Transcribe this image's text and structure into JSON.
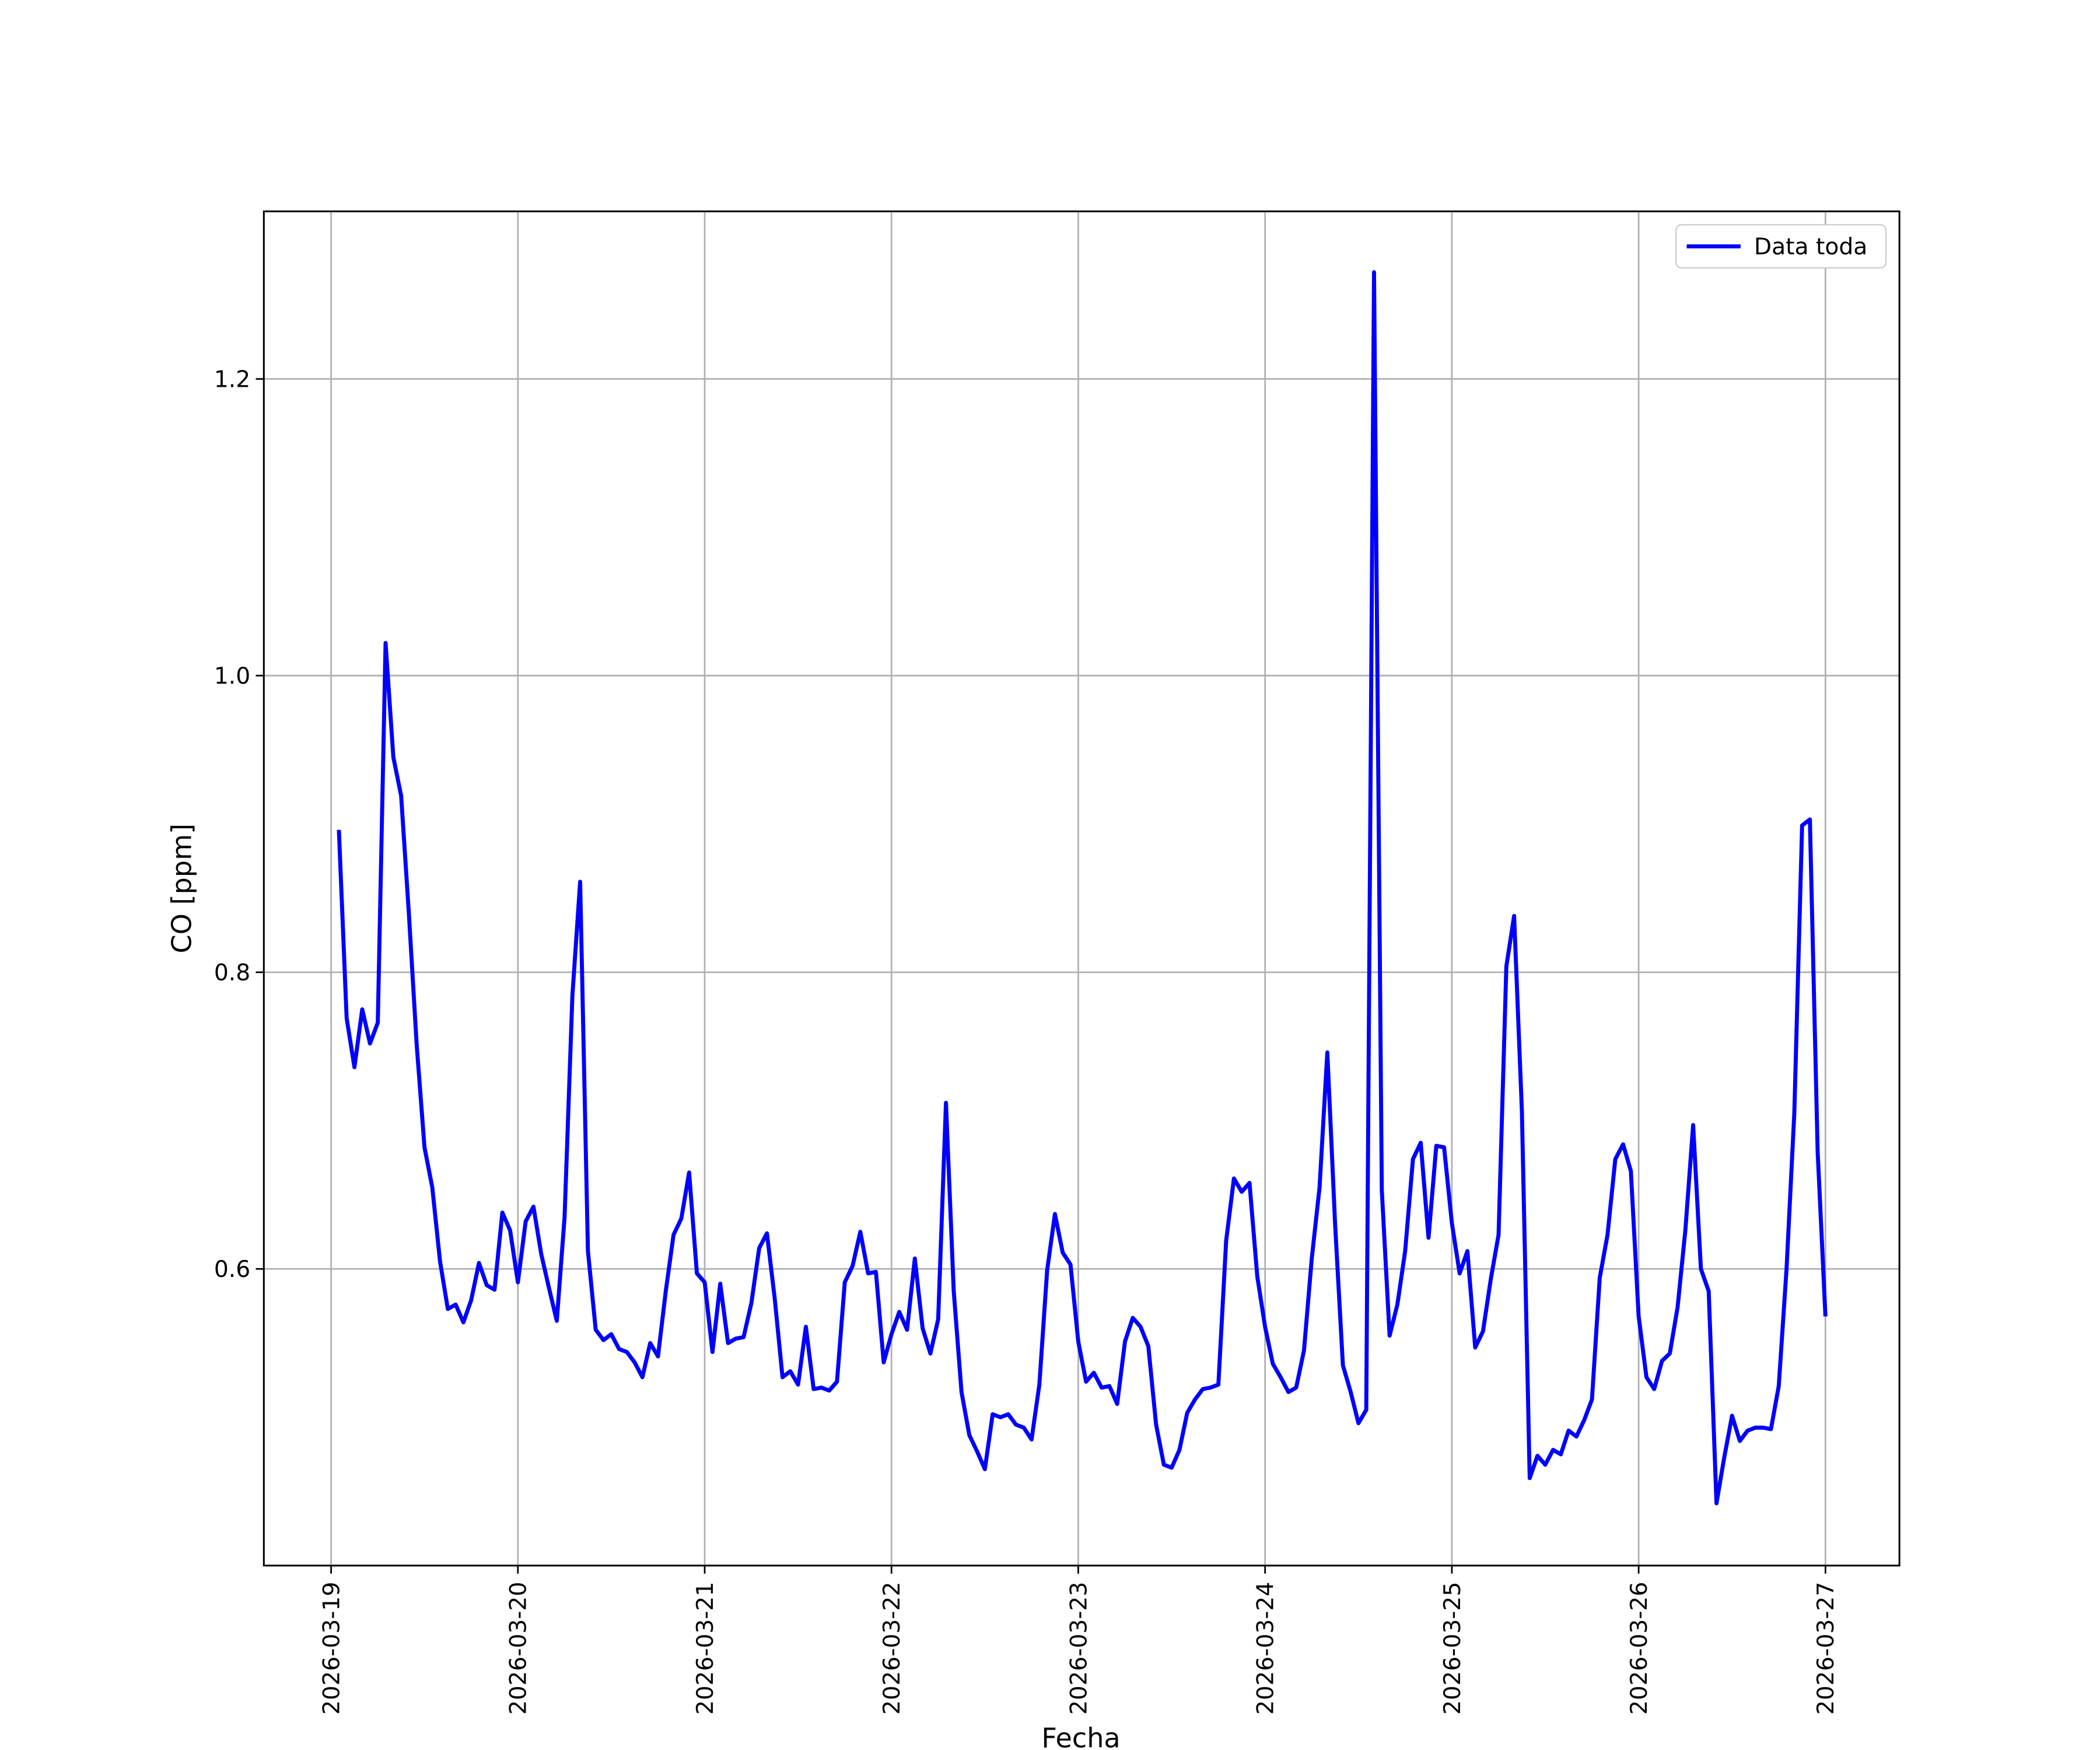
{
  "chart_data": {
    "type": "line",
    "xlabel": "Fecha",
    "ylabel": "CO [ppm]",
    "xlim": [
      -0.36,
      8.396
    ],
    "ylim": [
      0.4,
      1.313
    ],
    "xticks": [
      {
        "value": 0,
        "label": "2026-03-19"
      },
      {
        "value": 1,
        "label": "2026-03-20"
      },
      {
        "value": 2,
        "label": "2026-03-21"
      },
      {
        "value": 3,
        "label": "2026-03-22"
      },
      {
        "value": 4,
        "label": "2026-03-23"
      },
      {
        "value": 5,
        "label": "2026-03-24"
      },
      {
        "value": 6,
        "label": "2026-03-25"
      },
      {
        "value": 7,
        "label": "2026-03-26"
      },
      {
        "value": 8,
        "label": "2026-03-27"
      }
    ],
    "yticks": [
      0.6,
      0.8,
      1.0,
      1.2
    ],
    "grid": true,
    "legend": "upper right",
    "x": [
      0.0417,
      0.0833,
      0.125,
      0.1667,
      0.2083,
      0.25,
      0.2917,
      0.3333,
      0.375,
      0.4167,
      0.4583,
      0.5,
      0.5417,
      0.5833,
      0.625,
      0.6667,
      0.7083,
      0.75,
      0.7917,
      0.8333,
      0.875,
      0.9167,
      0.9583,
      1,
      1.0417,
      1.0833,
      1.125,
      1.1667,
      1.2083,
      1.25,
      1.2917,
      1.3333,
      1.375,
      1.4167,
      1.4583,
      1.5,
      1.5417,
      1.5833,
      1.625,
      1.6667,
      1.7083,
      1.75,
      1.7917,
      1.8333,
      1.875,
      1.9167,
      1.9583,
      2,
      2.0417,
      2.0833,
      2.125,
      2.1667,
      2.2083,
      2.25,
      2.2917,
      2.3333,
      2.375,
      2.4167,
      2.4583,
      2.5,
      2.5417,
      2.5833,
      2.625,
      2.6667,
      2.7083,
      2.75,
      2.7917,
      2.8333,
      2.875,
      2.9167,
      2.9583,
      3,
      3.0417,
      3.0833,
      3.125,
      3.1667,
      3.2083,
      3.25,
      3.2917,
      3.3333,
      3.375,
      3.4167,
      3.4583,
      3.5,
      3.5417,
      3.5833,
      3.625,
      3.6667,
      3.7083,
      3.75,
      3.7917,
      3.8333,
      3.875,
      3.9167,
      3.9583,
      4,
      4.0417,
      4.0833,
      4.125,
      4.1667,
      4.2083,
      4.25,
      4.2917,
      4.3333,
      4.375,
      4.4167,
      4.4583,
      4.5,
      4.5417,
      4.5833,
      4.625,
      4.6667,
      4.7083,
      4.75,
      4.7917,
      4.8333,
      4.875,
      4.9167,
      4.9583,
      5,
      5.0417,
      5.0833,
      5.125,
      5.1667,
      5.2083,
      5.25,
      5.2917,
      5.3333,
      5.375,
      5.4167,
      5.4583,
      5.5,
      5.5417,
      5.5833,
      5.625,
      5.6667,
      5.7083,
      5.75,
      5.7917,
      5.8333,
      5.875,
      5.9167,
      5.9583,
      6,
      6.0417,
      6.0833,
      6.125,
      6.1667,
      6.2083,
      6.25,
      6.2917,
      6.3333,
      6.375,
      6.4167,
      6.4583,
      6.5,
      6.5417,
      6.5833,
      6.625,
      6.6667,
      6.7083,
      6.75,
      6.7917,
      6.8333,
      6.875,
      6.9167,
      6.9583,
      7,
      7.0417,
      7.0833,
      7.125,
      7.1667,
      7.2083,
      7.25,
      7.2917,
      7.3333,
      7.375,
      7.4167,
      7.4583,
      7.5,
      7.5417,
      7.5833,
      7.625,
      7.6667,
      7.7083,
      7.75,
      7.7917,
      7.8333,
      7.875,
      7.9167,
      7.9583,
      8
    ],
    "series": [
      {
        "name": "Data toda",
        "color": "#0000ff",
        "values": [
          0.896,
          0.769,
          0.736,
          0.775,
          0.752,
          0.766,
          1.022,
          0.945,
          0.919,
          0.839,
          0.751,
          0.682,
          0.655,
          0.605,
          0.573,
          0.576,
          0.564,
          0.579,
          0.604,
          0.589,
          0.586,
          0.638,
          0.626,
          0.591,
          0.632,
          0.642,
          0.61,
          0.587,
          0.565,
          0.635,
          0.784,
          0.861,
          0.612,
          0.559,
          0.552,
          0.556,
          0.546,
          0.544,
          0.537,
          0.527,
          0.55,
          0.541,
          0.585,
          0.623,
          0.634,
          0.665,
          0.597,
          0.591,
          0.544,
          0.59,
          0.55,
          0.553,
          0.554,
          0.577,
          0.614,
          0.624,
          0.58,
          0.527,
          0.531,
          0.522,
          0.561,
          0.519,
          0.52,
          0.518,
          0.524,
          0.591,
          0.602,
          0.625,
          0.597,
          0.598,
          0.537,
          0.556,
          0.571,
          0.559,
          0.607,
          0.56,
          0.543,
          0.566,
          0.712,
          0.585,
          0.517,
          0.488,
          0.477,
          0.465,
          0.502,
          0.5,
          0.502,
          0.495,
          0.493,
          0.485,
          0.522,
          0.599,
          0.637,
          0.611,
          0.603,
          0.551,
          0.524,
          0.53,
          0.52,
          0.521,
          0.509,
          0.551,
          0.567,
          0.561,
          0.548,
          0.495,
          0.468,
          0.466,
          0.478,
          0.503,
          0.512,
          0.519,
          0.52,
          0.522,
          0.619,
          0.661,
          0.652,
          0.658,
          0.595,
          0.561,
          0.536,
          0.527,
          0.517,
          0.52,
          0.545,
          0.607,
          0.655,
          0.746,
          0.63,
          0.535,
          0.517,
          0.496,
          0.505,
          1.272,
          0.653,
          0.555,
          0.576,
          0.612,
          0.674,
          0.685,
          0.621,
          0.683,
          0.682,
          0.631,
          0.597,
          0.612,
          0.547,
          0.558,
          0.593,
          0.623,
          0.804,
          0.838,
          0.706,
          0.459,
          0.474,
          0.468,
          0.478,
          0.475,
          0.491,
          0.487,
          0.498,
          0.512,
          0.594,
          0.623,
          0.674,
          0.684,
          0.666,
          0.568,
          0.527,
          0.519,
          0.538,
          0.543,
          0.574,
          0.626,
          0.697,
          0.6,
          0.585,
          0.442,
          0.473,
          0.501,
          0.484,
          0.491,
          0.493,
          0.493,
          0.492,
          0.521,
          0.6,
          0.705,
          0.899,
          0.903,
          0.679,
          0.568
        ]
      }
    ]
  }
}
